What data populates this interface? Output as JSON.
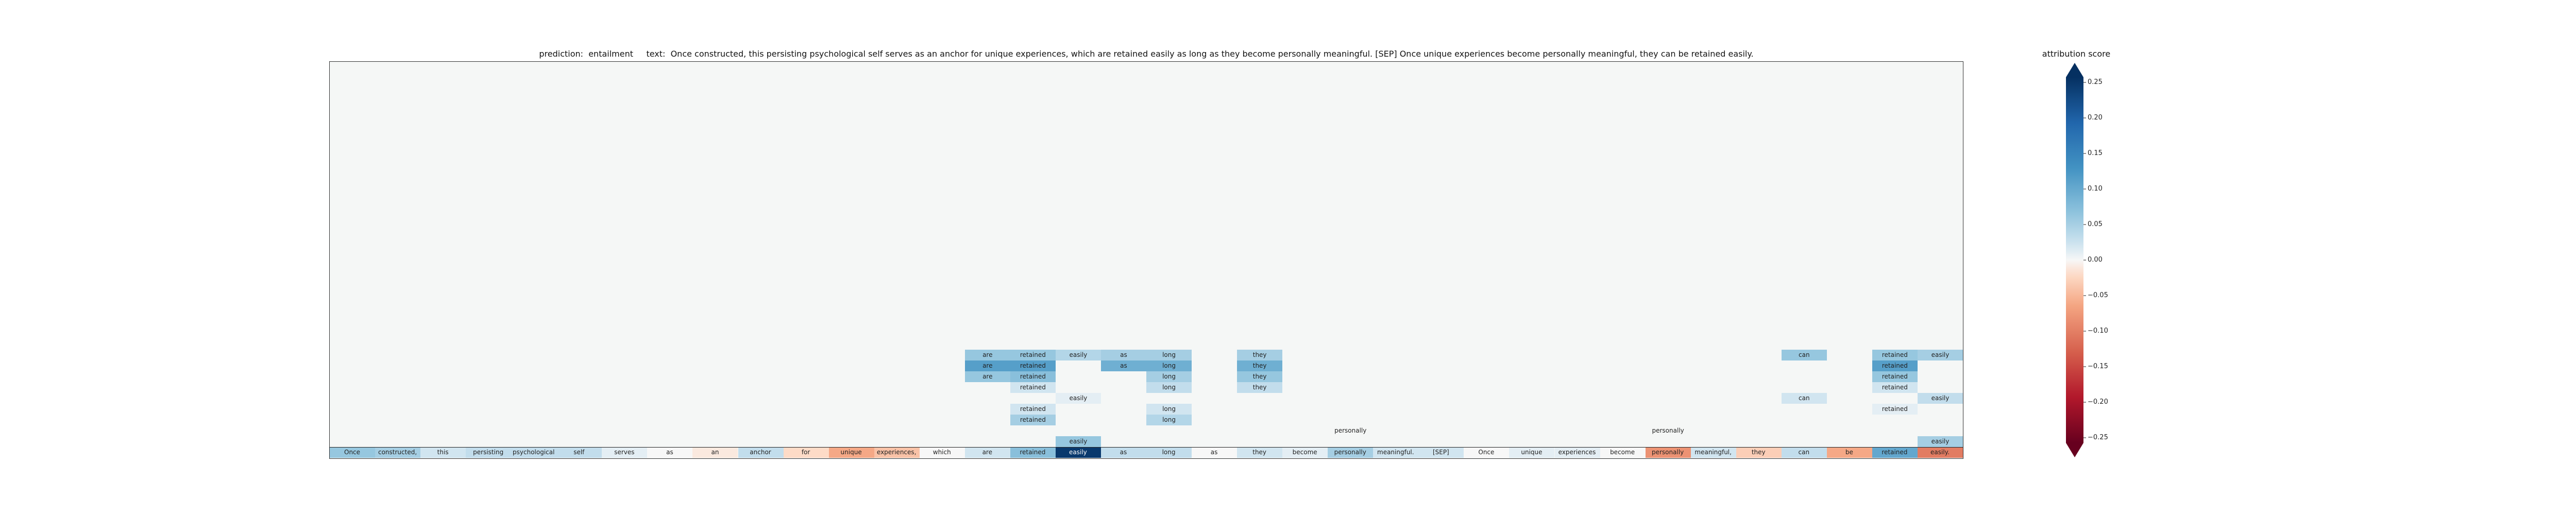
{
  "title": "prediction:  entailment     text:  Once constructed, this persisting psychological self serves as an anchor for unique experiences, which are retained easily as long as they become personally meaningful. [SEP] Once unique experiences become personally meaningful, they can be retained easily.",
  "colorbar": {
    "label": "attribution score",
    "vmin": -0.25,
    "vmax": 0.25,
    "ticks": [
      "0.25",
      "0.20",
      "0.15",
      "0.10",
      "0.05",
      "0.00",
      "−0.05",
      "−0.10",
      "−0.15",
      "−0.20",
      "−0.25"
    ],
    "tick_values": [
      0.25,
      0.2,
      0.15,
      0.1,
      0.05,
      0.0,
      -0.05,
      -0.1,
      -0.15,
      -0.2,
      -0.25
    ],
    "colors": {
      "neg": "#67001f",
      "mid": "#f7f7f7",
      "pos": "#053061"
    }
  },
  "chart_data": {
    "type": "heatmap",
    "tokens": [
      "Once",
      "constructed,",
      "this",
      "persisting",
      "psychological",
      "self",
      "serves",
      "as",
      "an",
      "anchor",
      "for",
      "unique",
      "experiences,",
      "which",
      "are",
      "retained",
      "easily",
      "as",
      "long",
      "as",
      "they",
      "become",
      "personally",
      "meaningful.",
      "[SEP]",
      "Once",
      "unique",
      "experiences",
      "become",
      "personally",
      "meaningful,",
      "they",
      "can",
      "be",
      "retained",
      "easily."
    ],
    "base_scores": [
      0.06,
      0.05,
      0.02,
      0.03,
      0.03,
      0.03,
      0.01,
      0.0,
      -0.01,
      0.03,
      -0.02,
      -0.06,
      -0.04,
      0.0,
      0.02,
      0.07,
      0.24,
      0.03,
      0.03,
      0.0,
      0.02,
      0.01,
      0.05,
      0.02,
      0.02,
      0.0,
      0.01,
      0.01,
      0.0,
      -0.08,
      0.02,
      -0.03,
      0.03,
      -0.06,
      0.1,
      -0.1
    ],
    "rows": [
      {
        "level": 1,
        "cells": [
          {
            "col": 16,
            "text": "easily",
            "score": 0.06
          },
          {
            "col": 35,
            "text": "easily",
            "score": 0.05
          }
        ]
      },
      {
        "level": 2,
        "cells": [
          {
            "col": 22,
            "text": "personally",
            "score": 0.0
          },
          {
            "col": 29,
            "text": "personally",
            "score": 0.0
          }
        ]
      },
      {
        "level": 3,
        "cells": [
          {
            "col": 15,
            "text": "retained",
            "score": 0.05
          },
          {
            "col": 18,
            "text": "long",
            "score": 0.04
          }
        ]
      },
      {
        "level": 4,
        "cells": [
          {
            "col": 15,
            "text": "retained",
            "score": 0.02
          },
          {
            "col": 18,
            "text": "long",
            "score": 0.02
          },
          {
            "col": 34,
            "text": "retained",
            "score": 0.01
          }
        ]
      },
      {
        "level": 5,
        "cells": [
          {
            "col": 16,
            "text": "easily",
            "score": 0.01
          },
          {
            "col": 32,
            "text": "can",
            "score": 0.02
          },
          {
            "col": 35,
            "text": "easily",
            "score": 0.03
          }
        ]
      },
      {
        "level": 6,
        "cells": [
          {
            "col": 15,
            "text": "retained",
            "score": 0.02
          },
          {
            "col": 18,
            "text": "long",
            "score": 0.03
          },
          {
            "col": 20,
            "text": "they",
            "score": 0.03
          },
          {
            "col": 34,
            "text": "retained",
            "score": 0.02
          }
        ]
      },
      {
        "level": 7,
        "cells": [
          {
            "col": 14,
            "text": "are",
            "score": 0.06
          },
          {
            "col": 15,
            "text": "retained",
            "score": 0.07
          },
          {
            "col": 18,
            "text": "long",
            "score": 0.05
          },
          {
            "col": 20,
            "text": "they",
            "score": 0.06
          },
          {
            "col": 34,
            "text": "retained",
            "score": 0.06
          }
        ]
      },
      {
        "level": 8,
        "cells": [
          {
            "col": 14,
            "text": "are",
            "score": 0.11
          },
          {
            "col": 15,
            "text": "retained",
            "score": 0.11
          },
          {
            "col": 17,
            "text": "as",
            "score": 0.09
          },
          {
            "col": 18,
            "text": "long",
            "score": 0.09
          },
          {
            "col": 20,
            "text": "they",
            "score": 0.09
          },
          {
            "col": 34,
            "text": "retained",
            "score": 0.11
          }
        ]
      },
      {
        "level": 9,
        "cells": [
          {
            "col": 14,
            "text": "are",
            "score": 0.06
          },
          {
            "col": 15,
            "text": "retained",
            "score": 0.06
          },
          {
            "col": 16,
            "text": "easily",
            "score": 0.04
          },
          {
            "col": 17,
            "text": "as",
            "score": 0.05
          },
          {
            "col": 18,
            "text": "long",
            "score": 0.05
          },
          {
            "col": 20,
            "text": "they",
            "score": 0.05
          },
          {
            "col": 32,
            "text": "can",
            "score": 0.06
          },
          {
            "col": 34,
            "text": "retained",
            "score": 0.06
          },
          {
            "col": 35,
            "text": "easily",
            "score": 0.05
          }
        ]
      }
    ]
  }
}
